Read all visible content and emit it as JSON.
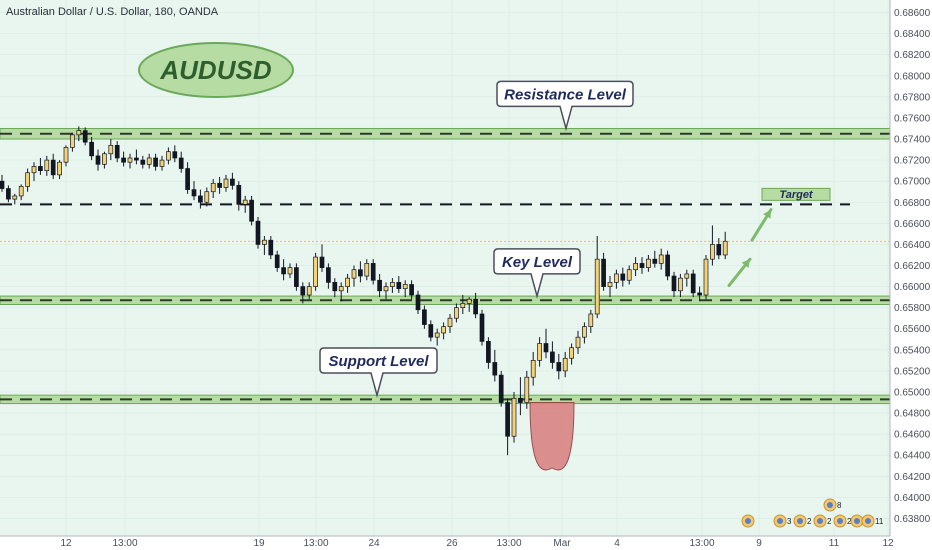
{
  "header": {
    "title": "Australian Dollar / U.S. Dollar, 180, OANDA"
  },
  "badge": {
    "text": "AUDUSD"
  },
  "colors": {
    "background": "#e9f6ef",
    "zone_fill": "#b7dca3",
    "zone_stroke": "#6aa95a",
    "bull_candle": "#f3d27a",
    "bear_candle": "#131722",
    "arrow": "#7dba6b",
    "dip": "#d98383"
  },
  "chart_data": {
    "type": "candlestick",
    "symbol": "AUDUSD",
    "timeframe": "180",
    "ylim": [
      0.637,
      0.687
    ],
    "y_ticks": [
      "0.68600",
      "0.68400",
      "0.68200",
      "0.68000",
      "0.67800",
      "0.67600",
      "0.67400",
      "0.67200",
      "0.67000",
      "0.66800",
      "0.66600",
      "0.66400",
      "0.66200",
      "0.66000",
      "0.65800",
      "0.65600",
      "0.65400",
      "0.65200",
      "0.65000",
      "0.64800",
      "0.64600",
      "0.64400",
      "0.64200",
      "0.64000",
      "0.63800"
    ],
    "x_ticks": [
      "12",
      "13:00",
      "19",
      "13:00",
      "24",
      "26",
      "13:00",
      "Mar",
      "4",
      "13:00",
      "9",
      "11",
      "12"
    ],
    "current_price": 0.6643,
    "levels": [
      {
        "label": "Resistance Level",
        "low": 0.674,
        "high": 0.675,
        "dash": 0.6745
      },
      {
        "label": "Key Level",
        "low": 0.6583,
        "high": 0.6591,
        "dash": 0.6587
      },
      {
        "label": "Support Level",
        "low": 0.6489,
        "high": 0.6497,
        "dash": 0.6493
      }
    ],
    "target": {
      "label": "Target",
      "price": 0.6678
    },
    "events": [
      {
        "label": "3"
      },
      {
        "label": "2"
      },
      {
        "label": "2"
      },
      {
        "label": "2"
      },
      {
        "label": "8"
      },
      {
        "label": "2"
      },
      {
        "label": "5"
      },
      {
        "label": "11"
      }
    ],
    "candles": [
      [
        0.67,
        0.6706,
        0.669,
        0.6693
      ],
      [
        0.6693,
        0.6696,
        0.668,
        0.6683
      ],
      [
        0.6683,
        0.6688,
        0.6678,
        0.6686
      ],
      [
        0.6686,
        0.6697,
        0.6682,
        0.6695
      ],
      [
        0.6695,
        0.6712,
        0.669,
        0.6708
      ],
      [
        0.6708,
        0.6718,
        0.67,
        0.6714
      ],
      [
        0.6714,
        0.6722,
        0.6706,
        0.671
      ],
      [
        0.671,
        0.6724,
        0.6705,
        0.672
      ],
      [
        0.672,
        0.6726,
        0.6702,
        0.6706
      ],
      [
        0.6706,
        0.672,
        0.6702,
        0.6718
      ],
      [
        0.6718,
        0.6734,
        0.6714,
        0.6732
      ],
      [
        0.6732,
        0.6746,
        0.6728,
        0.6744
      ],
      [
        0.6744,
        0.6752,
        0.6738,
        0.6748
      ],
      [
        0.6748,
        0.6751,
        0.6734,
        0.6737
      ],
      [
        0.6737,
        0.6742,
        0.672,
        0.6724
      ],
      [
        0.6724,
        0.673,
        0.671,
        0.6716
      ],
      [
        0.6716,
        0.6728,
        0.6712,
        0.6726
      ],
      [
        0.6726,
        0.674,
        0.672,
        0.6734
      ],
      [
        0.6734,
        0.6738,
        0.6718,
        0.6722
      ],
      [
        0.6722,
        0.6728,
        0.6714,
        0.6718
      ],
      [
        0.6718,
        0.6726,
        0.6712,
        0.6722
      ],
      [
        0.6722,
        0.673,
        0.6716,
        0.672
      ],
      [
        0.672,
        0.6724,
        0.6712,
        0.6716
      ],
      [
        0.6716,
        0.6726,
        0.6712,
        0.6722
      ],
      [
        0.6722,
        0.6726,
        0.671,
        0.6714
      ],
      [
        0.6714,
        0.6724,
        0.671,
        0.672
      ],
      [
        0.672,
        0.6732,
        0.6716,
        0.6728
      ],
      [
        0.6728,
        0.6734,
        0.6718,
        0.6722
      ],
      [
        0.6722,
        0.6728,
        0.6708,
        0.6712
      ],
      [
        0.6712,
        0.6718,
        0.6688,
        0.6692
      ],
      [
        0.6692,
        0.67,
        0.6682,
        0.6686
      ],
      [
        0.6686,
        0.6692,
        0.6674,
        0.668
      ],
      [
        0.668,
        0.6694,
        0.6676,
        0.669
      ],
      [
        0.669,
        0.6702,
        0.6684,
        0.6698
      ],
      [
        0.6698,
        0.6704,
        0.6688,
        0.6694
      ],
      [
        0.6694,
        0.6706,
        0.669,
        0.6702
      ],
      [
        0.6702,
        0.6708,
        0.6692,
        0.6696
      ],
      [
        0.6696,
        0.67,
        0.6672,
        0.6678
      ],
      [
        0.6678,
        0.6686,
        0.667,
        0.6682
      ],
      [
        0.6682,
        0.6686,
        0.6658,
        0.6662
      ],
      [
        0.6662,
        0.6666,
        0.6636,
        0.664
      ],
      [
        0.664,
        0.6648,
        0.663,
        0.6644
      ],
      [
        0.6644,
        0.6648,
        0.6626,
        0.663
      ],
      [
        0.663,
        0.6634,
        0.6614,
        0.6618
      ],
      [
        0.6618,
        0.6626,
        0.6606,
        0.6612
      ],
      [
        0.6612,
        0.6622,
        0.6608,
        0.6618
      ],
      [
        0.6618,
        0.6622,
        0.6596,
        0.66
      ],
      [
        0.66,
        0.6604,
        0.6584,
        0.6592
      ],
      [
        0.6592,
        0.6604,
        0.6588,
        0.66
      ],
      [
        0.66,
        0.6632,
        0.6596,
        0.6628
      ],
      [
        0.6628,
        0.664,
        0.6614,
        0.6618
      ],
      [
        0.6618,
        0.6622,
        0.6598,
        0.6604
      ],
      [
        0.6604,
        0.6608,
        0.659,
        0.6596
      ],
      [
        0.6596,
        0.6604,
        0.6586,
        0.66
      ],
      [
        0.66,
        0.6612,
        0.6594,
        0.6608
      ],
      [
        0.6608,
        0.662,
        0.66,
        0.6616
      ],
      [
        0.6616,
        0.6624,
        0.6604,
        0.661
      ],
      [
        0.661,
        0.6626,
        0.6606,
        0.6622
      ],
      [
        0.6622,
        0.6626,
        0.6602,
        0.6606
      ],
      [
        0.6606,
        0.6612,
        0.659,
        0.6596
      ],
      [
        0.6596,
        0.6604,
        0.6588,
        0.66
      ],
      [
        0.66,
        0.6608,
        0.6594,
        0.6604
      ],
      [
        0.6604,
        0.661,
        0.6594,
        0.6598
      ],
      [
        0.6598,
        0.6606,
        0.659,
        0.6602
      ],
      [
        0.6602,
        0.6606,
        0.6588,
        0.6592
      ],
      [
        0.6592,
        0.6596,
        0.6574,
        0.6578
      ],
      [
        0.6578,
        0.6582,
        0.656,
        0.6564
      ],
      [
        0.6564,
        0.6568,
        0.6548,
        0.6552
      ],
      [
        0.6552,
        0.656,
        0.6544,
        0.6556
      ],
      [
        0.6556,
        0.6566,
        0.655,
        0.6562
      ],
      [
        0.6562,
        0.6574,
        0.6556,
        0.657
      ],
      [
        0.657,
        0.6584,
        0.6566,
        0.658
      ],
      [
        0.658,
        0.6592,
        0.6574,
        0.6584
      ],
      [
        0.6584,
        0.659,
        0.6576,
        0.6588
      ],
      [
        0.6588,
        0.6594,
        0.657,
        0.6574
      ],
      [
        0.6574,
        0.6578,
        0.6544,
        0.6548
      ],
      [
        0.6548,
        0.6552,
        0.6522,
        0.6528
      ],
      [
        0.6528,
        0.654,
        0.651,
        0.6516
      ],
      [
        0.6516,
        0.652,
        0.6486,
        0.649
      ],
      [
        0.649,
        0.6494,
        0.644,
        0.6458
      ],
      [
        0.6458,
        0.65,
        0.6452,
        0.6494
      ],
      [
        0.6494,
        0.6514,
        0.6478,
        0.649
      ],
      [
        0.649,
        0.652,
        0.6484,
        0.6514
      ],
      [
        0.6514,
        0.6538,
        0.6506,
        0.653
      ],
      [
        0.653,
        0.6552,
        0.6524,
        0.6546
      ],
      [
        0.6546,
        0.656,
        0.6532,
        0.6538
      ],
      [
        0.6538,
        0.6548,
        0.6522,
        0.6528
      ],
      [
        0.6528,
        0.6536,
        0.6512,
        0.652
      ],
      [
        0.652,
        0.6538,
        0.6514,
        0.6532
      ],
      [
        0.6532,
        0.6546,
        0.6526,
        0.6542
      ],
      [
        0.6542,
        0.6558,
        0.6536,
        0.6552
      ],
      [
        0.6552,
        0.6566,
        0.6546,
        0.6562
      ],
      [
        0.6562,
        0.6578,
        0.6556,
        0.6574
      ],
      [
        0.6574,
        0.6648,
        0.657,
        0.6626
      ],
      [
        0.6626,
        0.6632,
        0.6596,
        0.66
      ],
      [
        0.66,
        0.661,
        0.659,
        0.6604
      ],
      [
        0.6604,
        0.6616,
        0.6598,
        0.6612
      ],
      [
        0.6612,
        0.6618,
        0.66,
        0.6606
      ],
      [
        0.6606,
        0.662,
        0.6602,
        0.6616
      ],
      [
        0.6616,
        0.6628,
        0.661,
        0.6622
      ],
      [
        0.6622,
        0.6628,
        0.6612,
        0.6618
      ],
      [
        0.6618,
        0.663,
        0.6614,
        0.6626
      ],
      [
        0.6626,
        0.6634,
        0.6618,
        0.6622
      ],
      [
        0.6622,
        0.6636,
        0.6616,
        0.663
      ],
      [
        0.663,
        0.6634,
        0.6606,
        0.661
      ],
      [
        0.661,
        0.6614,
        0.659,
        0.6596
      ],
      [
        0.6596,
        0.6612,
        0.659,
        0.6608
      ],
      [
        0.6608,
        0.6616,
        0.66,
        0.6612
      ],
      [
        0.6612,
        0.6616,
        0.659,
        0.6594
      ],
      [
        0.6594,
        0.66,
        0.6586,
        0.6592
      ],
      [
        0.6592,
        0.663,
        0.6588,
        0.6626
      ],
      [
        0.6626,
        0.6658,
        0.662,
        0.664
      ],
      [
        0.664,
        0.6646,
        0.6626,
        0.663
      ],
      [
        0.663,
        0.6652,
        0.6626,
        0.6643
      ]
    ]
  }
}
